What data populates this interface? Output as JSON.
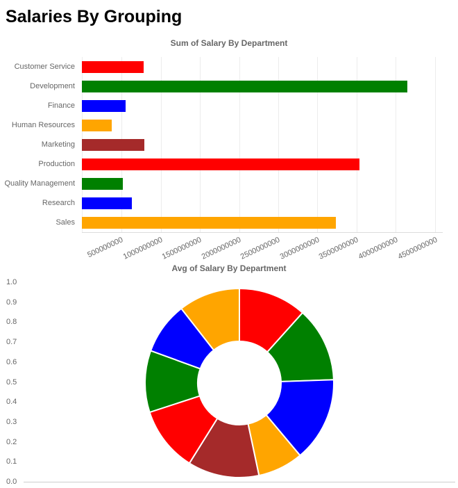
{
  "page": {
    "title": "Salaries By Grouping"
  },
  "colors": {
    "red": "#ff0000",
    "green": "#008000",
    "blue": "#0000ff",
    "orange": "#ffa500",
    "brown": "#a52a2a",
    "grid": "#ececec",
    "axis_text": "#666666"
  },
  "chart_data": [
    {
      "type": "bar",
      "orientation": "horizontal",
      "title": "Sum of Salary By Department",
      "categories": [
        "Customer Service",
        "Development",
        "Finance",
        "Human Resources",
        "Marketing",
        "Production",
        "Quality Management",
        "Research",
        "Sales"
      ],
      "values": [
        790000000,
        4150000000,
        560000000,
        380000000,
        800000000,
        3540000000,
        520000000,
        640000000,
        3240000000
      ],
      "bar_colors": [
        "red",
        "green",
        "blue",
        "orange",
        "brown",
        "red",
        "green",
        "blue",
        "orange"
      ],
      "xlim": [
        0,
        4600000000
      ],
      "x_ticks": [
        "500000000",
        "1000000000",
        "1500000000",
        "2000000000",
        "2500000000",
        "3000000000",
        "3500000000",
        "4000000000",
        "4500000000"
      ],
      "grid": true,
      "legend": "none"
    },
    {
      "type": "pie",
      "subtype": "donut",
      "title": "Avg of Salary By Department",
      "categories": [
        "Customer Service",
        "Development",
        "Finance",
        "Human Resources",
        "Marketing",
        "Production",
        "Quality Management",
        "Research",
        "Sales"
      ],
      "values": [
        63000,
        69000,
        78000,
        42000,
        66000,
        60000,
        57000,
        48000,
        57000
      ],
      "slice_colors": [
        "red",
        "green",
        "blue",
        "orange",
        "brown",
        "red",
        "green",
        "blue",
        "orange"
      ],
      "y_ticks": [
        "1.0",
        "0.9",
        "0.8",
        "0.7",
        "0.6",
        "0.5",
        "0.4",
        "0.3",
        "0.2",
        "0.1",
        "0.0"
      ],
      "legend": "none"
    }
  ]
}
